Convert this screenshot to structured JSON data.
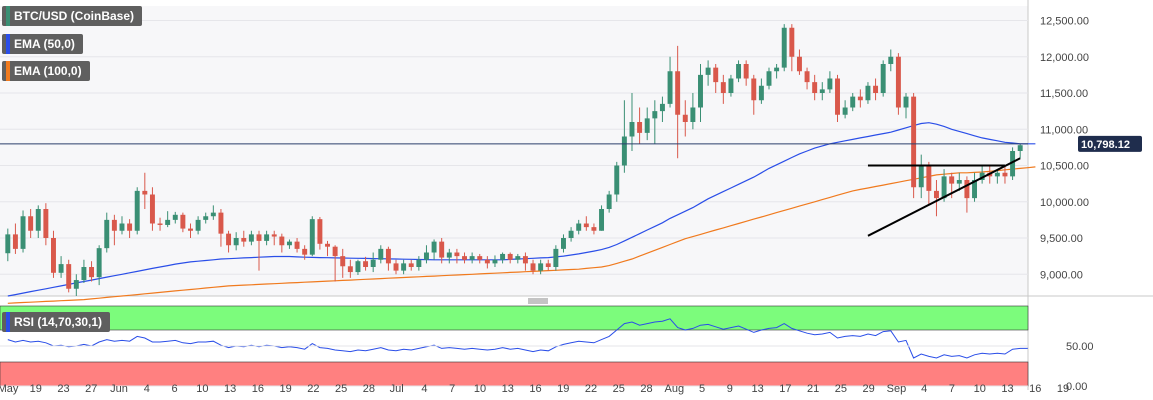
{
  "legend": {
    "instrument": "BTC/USD (CoinBase)",
    "ema50": "EMA (50,0)",
    "ema100": "EMA (100,0)",
    "rsi": "RSI (14,70,30,1)"
  },
  "price_axis": {
    "ticks": [
      "12,500.00",
      "12,000.00",
      "11,500.00",
      "11,000.00",
      "10,500.00",
      "10,000.00",
      "9,500.00",
      "9,000.00"
    ],
    "tick_values": [
      12500,
      12000,
      11500,
      11000,
      10500,
      10000,
      9500,
      9000
    ],
    "current_price": "10,798.12",
    "current_value": 10798.12
  },
  "rsi_axis": {
    "ticks": [
      "50.00",
      "0.00"
    ],
    "tick_values": [
      50,
      0
    ]
  },
  "time_axis": {
    "labels": [
      "May",
      "19",
      "23",
      "27",
      "Jun",
      "4",
      "6",
      "10",
      "13",
      "16",
      "19",
      "22",
      "25",
      "28",
      "Jul",
      "4",
      "7",
      "10",
      "13",
      "16",
      "19",
      "22",
      "25",
      "28",
      "Aug",
      "5",
      "9",
      "13",
      "17",
      "21",
      "25",
      "29",
      "Sep",
      "4",
      "7",
      "10",
      "13",
      "16",
      "19"
    ]
  },
  "colors": {
    "up": "#3a8f74",
    "down": "#d9584b",
    "ema50": "#2a4ee8",
    "ema100": "#f07a1e",
    "rsi_line": "#2a4ee8",
    "overbought": "#7cfc7c",
    "oversold": "#ff8080",
    "price_line": "#2b3e6b",
    "tag_bg": "#5f5f5f"
  },
  "chart_data": {
    "type": "candlestick",
    "title": "BTC/USD (CoinBase)",
    "ylim": [
      8700,
      12700
    ],
    "candles": [
      [
        9290,
        9550,
        9180,
        9630
      ],
      [
        9550,
        9350,
        9280,
        9700
      ],
      [
        9350,
        9800,
        9300,
        9880
      ],
      [
        9800,
        9600,
        9500,
        9900
      ],
      [
        9600,
        9900,
        9500,
        9950
      ],
      [
        9900,
        9500,
        9400,
        9980
      ],
      [
        9500,
        9020,
        8950,
        9600
      ],
      [
        9020,
        9140,
        8950,
        9250
      ],
      [
        9140,
        8800,
        8750,
        9200
      ],
      [
        8800,
        8920,
        8700,
        9000
      ],
      [
        8920,
        9100,
        8880,
        9200
      ],
      [
        9100,
        8960,
        8900,
        9180
      ],
      [
        8960,
        9360,
        8850,
        9400
      ],
      [
        9360,
        9750,
        9300,
        9850
      ],
      [
        9750,
        9600,
        9400,
        9820
      ],
      [
        9600,
        9700,
        9550,
        9800
      ],
      [
        9700,
        9600,
        9500,
        9760
      ],
      [
        9600,
        10150,
        9550,
        10200
      ],
      [
        10150,
        10100,
        9900,
        10400
      ],
      [
        10100,
        9700,
        9600,
        10200
      ],
      [
        9700,
        9680,
        9600,
        9780
      ],
      [
        9680,
        9750,
        9650,
        9870
      ],
      [
        9750,
        9820,
        9700,
        9860
      ],
      [
        9820,
        9630,
        9580,
        9850
      ],
      [
        9630,
        9600,
        9500,
        9700
      ],
      [
        9600,
        9750,
        9550,
        9800
      ],
      [
        9750,
        9800,
        9700,
        9850
      ],
      [
        9800,
        9850,
        9750,
        9950
      ],
      [
        9850,
        9560,
        9380,
        9900
      ],
      [
        9560,
        9400,
        9300,
        9600
      ],
      [
        9400,
        9500,
        9330,
        9580
      ],
      [
        9500,
        9450,
        9380,
        9600
      ],
      [
        9450,
        9550,
        9400,
        9600
      ],
      [
        9550,
        9460,
        9050,
        9600
      ],
      [
        9460,
        9550,
        9400,
        9600
      ],
      [
        9550,
        9520,
        9400,
        9600
      ],
      [
        9520,
        9400,
        9300,
        9560
      ],
      [
        9400,
        9450,
        9350,
        9480
      ],
      [
        9450,
        9350,
        9300,
        9500
      ],
      [
        9350,
        9270,
        9200,
        9400
      ],
      [
        9270,
        9760,
        9250,
        9800
      ],
      [
        9760,
        9420,
        9340,
        9790
      ],
      [
        9420,
        9380,
        9250,
        9460
      ],
      [
        9380,
        9250,
        8900,
        9400
      ],
      [
        9250,
        9110,
        8950,
        9350
      ],
      [
        9110,
        9030,
        8950,
        9200
      ],
      [
        9030,
        9180,
        8990,
        9200
      ],
      [
        9180,
        9100,
        9050,
        9240
      ],
      [
        9100,
        9200,
        9030,
        9300
      ],
      [
        9200,
        9350,
        9150,
        9400
      ],
      [
        9350,
        9150,
        9050,
        9380
      ],
      [
        9150,
        9050,
        9000,
        9200
      ],
      [
        9050,
        9150,
        9000,
        9200
      ],
      [
        9150,
        9100,
        9050,
        9200
      ],
      [
        9100,
        9200,
        9050,
        9250
      ],
      [
        9200,
        9300,
        9150,
        9400
      ],
      [
        9300,
        9450,
        9200,
        9480
      ],
      [
        9450,
        9230,
        9150,
        9500
      ],
      [
        9230,
        9300,
        9150,
        9350
      ],
      [
        9300,
        9250,
        9150,
        9350
      ],
      [
        9250,
        9200,
        9150,
        9300
      ],
      [
        9200,
        9250,
        9150,
        9300
      ],
      [
        9250,
        9200,
        9150,
        9280
      ],
      [
        9200,
        9150,
        9080,
        9250
      ],
      [
        9150,
        9200,
        9100,
        9260
      ],
      [
        9200,
        9280,
        9150,
        9300
      ],
      [
        9280,
        9200,
        9150,
        9300
      ],
      [
        9200,
        9250,
        9150,
        9280
      ],
      [
        9250,
        9150,
        9050,
        9300
      ],
      [
        9150,
        9050,
        9000,
        9200
      ],
      [
        9050,
        9150,
        9000,
        9200
      ],
      [
        9150,
        9100,
        9050,
        9200
      ],
      [
        9100,
        9350,
        9050,
        9400
      ],
      [
        9350,
        9500,
        9300,
        9550
      ],
      [
        9500,
        9600,
        9450,
        9650
      ],
      [
        9600,
        9700,
        9550,
        9750
      ],
      [
        9700,
        9650,
        9600,
        9800
      ],
      [
        9650,
        9600,
        9550,
        9700
      ],
      [
        9600,
        9900,
        9600,
        9950
      ],
      [
        9900,
        10100,
        9850,
        10150
      ],
      [
        10100,
        10500,
        10000,
        10550
      ],
      [
        10500,
        10900,
        10400,
        11400
      ],
      [
        10900,
        11100,
        10700,
        11500
      ],
      [
        11100,
        10950,
        10800,
        11300
      ],
      [
        10950,
        11150,
        10850,
        11300
      ],
      [
        11150,
        11250,
        10800,
        11400
      ],
      [
        11250,
        11350,
        11100,
        11450
      ],
      [
        11350,
        11800,
        11300,
        12000
      ],
      [
        11800,
        11200,
        10600,
        12150
      ],
      [
        11200,
        11100,
        10900,
        11400
      ],
      [
        11100,
        11300,
        11000,
        11500
      ],
      [
        11300,
        11750,
        11100,
        11900
      ],
      [
        11750,
        11850,
        11600,
        11950
      ],
      [
        11850,
        11650,
        11500,
        11900
      ],
      [
        11650,
        11500,
        11350,
        11750
      ],
      [
        11500,
        11700,
        11450,
        11750
      ],
      [
        11700,
        11900,
        11650,
        11950
      ],
      [
        11900,
        11700,
        11600,
        11950
      ],
      [
        11700,
        11400,
        11200,
        11750
      ],
      [
        11400,
        11600,
        11350,
        11700
      ],
      [
        11600,
        11800,
        11550,
        11850
      ],
      [
        11800,
        11850,
        11700,
        11900
      ],
      [
        11850,
        12400,
        11800,
        12450
      ],
      [
        12400,
        12000,
        11800,
        12450
      ],
      [
        12000,
        11800,
        11750,
        12100
      ],
      [
        11800,
        11650,
        11550,
        11850
      ],
      [
        11650,
        11500,
        11400,
        11750
      ],
      [
        11500,
        11550,
        11400,
        11650
      ],
      [
        11550,
        11700,
        11500,
        11800
      ],
      [
        11700,
        11200,
        11100,
        11750
      ],
      [
        11200,
        11300,
        11150,
        11400
      ],
      [
        11300,
        11450,
        11250,
        11500
      ],
      [
        11450,
        11400,
        11300,
        11550
      ],
      [
        11400,
        11600,
        11350,
        11650
      ],
      [
        11600,
        11500,
        11400,
        11700
      ],
      [
        11500,
        11900,
        11450,
        11950
      ],
      [
        11900,
        12000,
        11800,
        12100
      ],
      [
        12000,
        11300,
        11200,
        12050
      ],
      [
        11300,
        11450,
        11150,
        11500
      ],
      [
        11450,
        10200,
        10050,
        11500
      ],
      [
        10200,
        10500,
        10050,
        10650
      ],
      [
        10500,
        10150,
        9950,
        10550
      ],
      [
        10150,
        10050,
        9800,
        10300
      ],
      [
        10050,
        10350,
        10000,
        10450
      ],
      [
        10350,
        10250,
        10050,
        10400
      ],
      [
        10250,
        10300,
        10150,
        10400
      ],
      [
        10300,
        10050,
        9850,
        10350
      ],
      [
        10050,
        10300,
        10000,
        10400
      ],
      [
        10300,
        10400,
        10250,
        10500
      ],
      [
        10400,
        10350,
        10250,
        10500
      ],
      [
        10350,
        10400,
        10250,
        10450
      ],
      [
        10400,
        10350,
        10250,
        10480
      ],
      [
        10350,
        10700,
        10300,
        10750
      ],
      [
        10700,
        10780,
        10600,
        10800
      ]
    ],
    "ema50": [
      8700,
      8720,
      8740,
      8760,
      8780,
      8800,
      8820,
      8840,
      8860,
      8880,
      8900,
      8920,
      8940,
      8960,
      8980,
      9000,
      9020,
      9040,
      9060,
      9080,
      9100,
      9120,
      9140,
      9155,
      9170,
      9180,
      9190,
      9200,
      9210,
      9215,
      9220,
      9225,
      9230,
      9235,
      9240,
      9245,
      9245,
      9245,
      9240,
      9235,
      9232,
      9230,
      9228,
      9226,
      9224,
      9222,
      9220,
      9218,
      9216,
      9214,
      9212,
      9210,
      9208,
      9206,
      9204,
      9202,
      9200,
      9200,
      9200,
      9200,
      9200,
      9200,
      9200,
      9200,
      9200,
      9200,
      9205,
      9210,
      9215,
      9220,
      9225,
      9230,
      9240,
      9250,
      9265,
      9280,
      9300,
      9320,
      9340,
      9370,
      9410,
      9460,
      9510,
      9560,
      9610,
      9660,
      9710,
      9770,
      9820,
      9870,
      9920,
      9980,
      10040,
      10090,
      10140,
      10190,
      10240,
      10290,
      10340,
      10400,
      10460,
      10510,
      10560,
      10610,
      10660,
      10700,
      10740,
      10770,
      10800,
      10820,
      10840,
      10860,
      10880,
      10900,
      10920,
      10940,
      10960,
      10990,
      11020,
      11050,
      11080,
      11090,
      11070,
      11040,
      11000,
      10970,
      10940,
      10910,
      10880,
      10860,
      10840,
      10820,
      10810,
      10800,
      10800,
      10800
    ],
    "ema100": [
      8600,
      8605,
      8610,
      8615,
      8620,
      8625,
      8630,
      8635,
      8640,
      8645,
      8650,
      8660,
      8670,
      8680,
      8690,
      8700,
      8710,
      8720,
      8730,
      8740,
      8750,
      8760,
      8770,
      8780,
      8790,
      8800,
      8810,
      8820,
      8830,
      8840,
      8845,
      8850,
      8855,
      8860,
      8865,
      8870,
      8875,
      8880,
      8885,
      8890,
      8895,
      8900,
      8905,
      8910,
      8915,
      8920,
      8925,
      8930,
      8935,
      8940,
      8945,
      8950,
      8955,
      8960,
      8965,
      8970,
      8975,
      8980,
      8985,
      8990,
      8995,
      9000,
      9005,
      9010,
      9015,
      9020,
      9025,
      9030,
      9035,
      9040,
      9045,
      9050,
      9055,
      9060,
      9065,
      9070,
      9080,
      9090,
      9100,
      9120,
      9150,
      9180,
      9210,
      9250,
      9290,
      9330,
      9370,
      9410,
      9450,
      9490,
      9520,
      9550,
      9580,
      9610,
      9640,
      9670,
      9700,
      9730,
      9760,
      9790,
      9820,
      9850,
      9880,
      9910,
      9940,
      9970,
      10000,
      10030,
      10060,
      10090,
      10120,
      10150,
      10170,
      10190,
      10210,
      10230,
      10250,
      10270,
      10290,
      10310,
      10330,
      10350,
      10370,
      10380,
      10390,
      10400,
      10400,
      10405,
      10410,
      10420,
      10430,
      10440,
      10450,
      10460,
      10470,
      10480
    ],
    "rsi": [
      58,
      55,
      57,
      55,
      56,
      54,
      50,
      51,
      49,
      50,
      52,
      50,
      55,
      58,
      56,
      57,
      56,
      62,
      60,
      55,
      55,
      56,
      57,
      54,
      53,
      55,
      55,
      56,
      51,
      48,
      50,
      49,
      51,
      49,
      51,
      50,
      48,
      49,
      48,
      46,
      53,
      48,
      47,
      45,
      44,
      43,
      45,
      44,
      46,
      48,
      45,
      44,
      46,
      45,
      47,
      49,
      51,
      47,
      48,
      47,
      46,
      47,
      46,
      45,
      46,
      48,
      46,
      47,
      45,
      43,
      45,
      44,
      49,
      52,
      54,
      56,
      55,
      54,
      58,
      62,
      70,
      78,
      80,
      76,
      78,
      80,
      81,
      84,
      73,
      70,
      72,
      76,
      77,
      74,
      71,
      73,
      75,
      71,
      67,
      70,
      72,
      73,
      78,
      72,
      69,
      66,
      64,
      65,
      67,
      60,
      62,
      63,
      62,
      65,
      63,
      68,
      69,
      55,
      57,
      35,
      40,
      37,
      35,
      39,
      37,
      38,
      35,
      39,
      41,
      40,
      41,
      40,
      46,
      47,
      47
    ],
    "triangle": {
      "resistance": [
        [
          113,
          10500
        ],
        [
          131,
          10500
        ]
      ],
      "support": [
        [
          113,
          9530
        ],
        [
          133,
          10600
        ]
      ]
    },
    "rsi_levels": [
      70,
      30
    ]
  }
}
